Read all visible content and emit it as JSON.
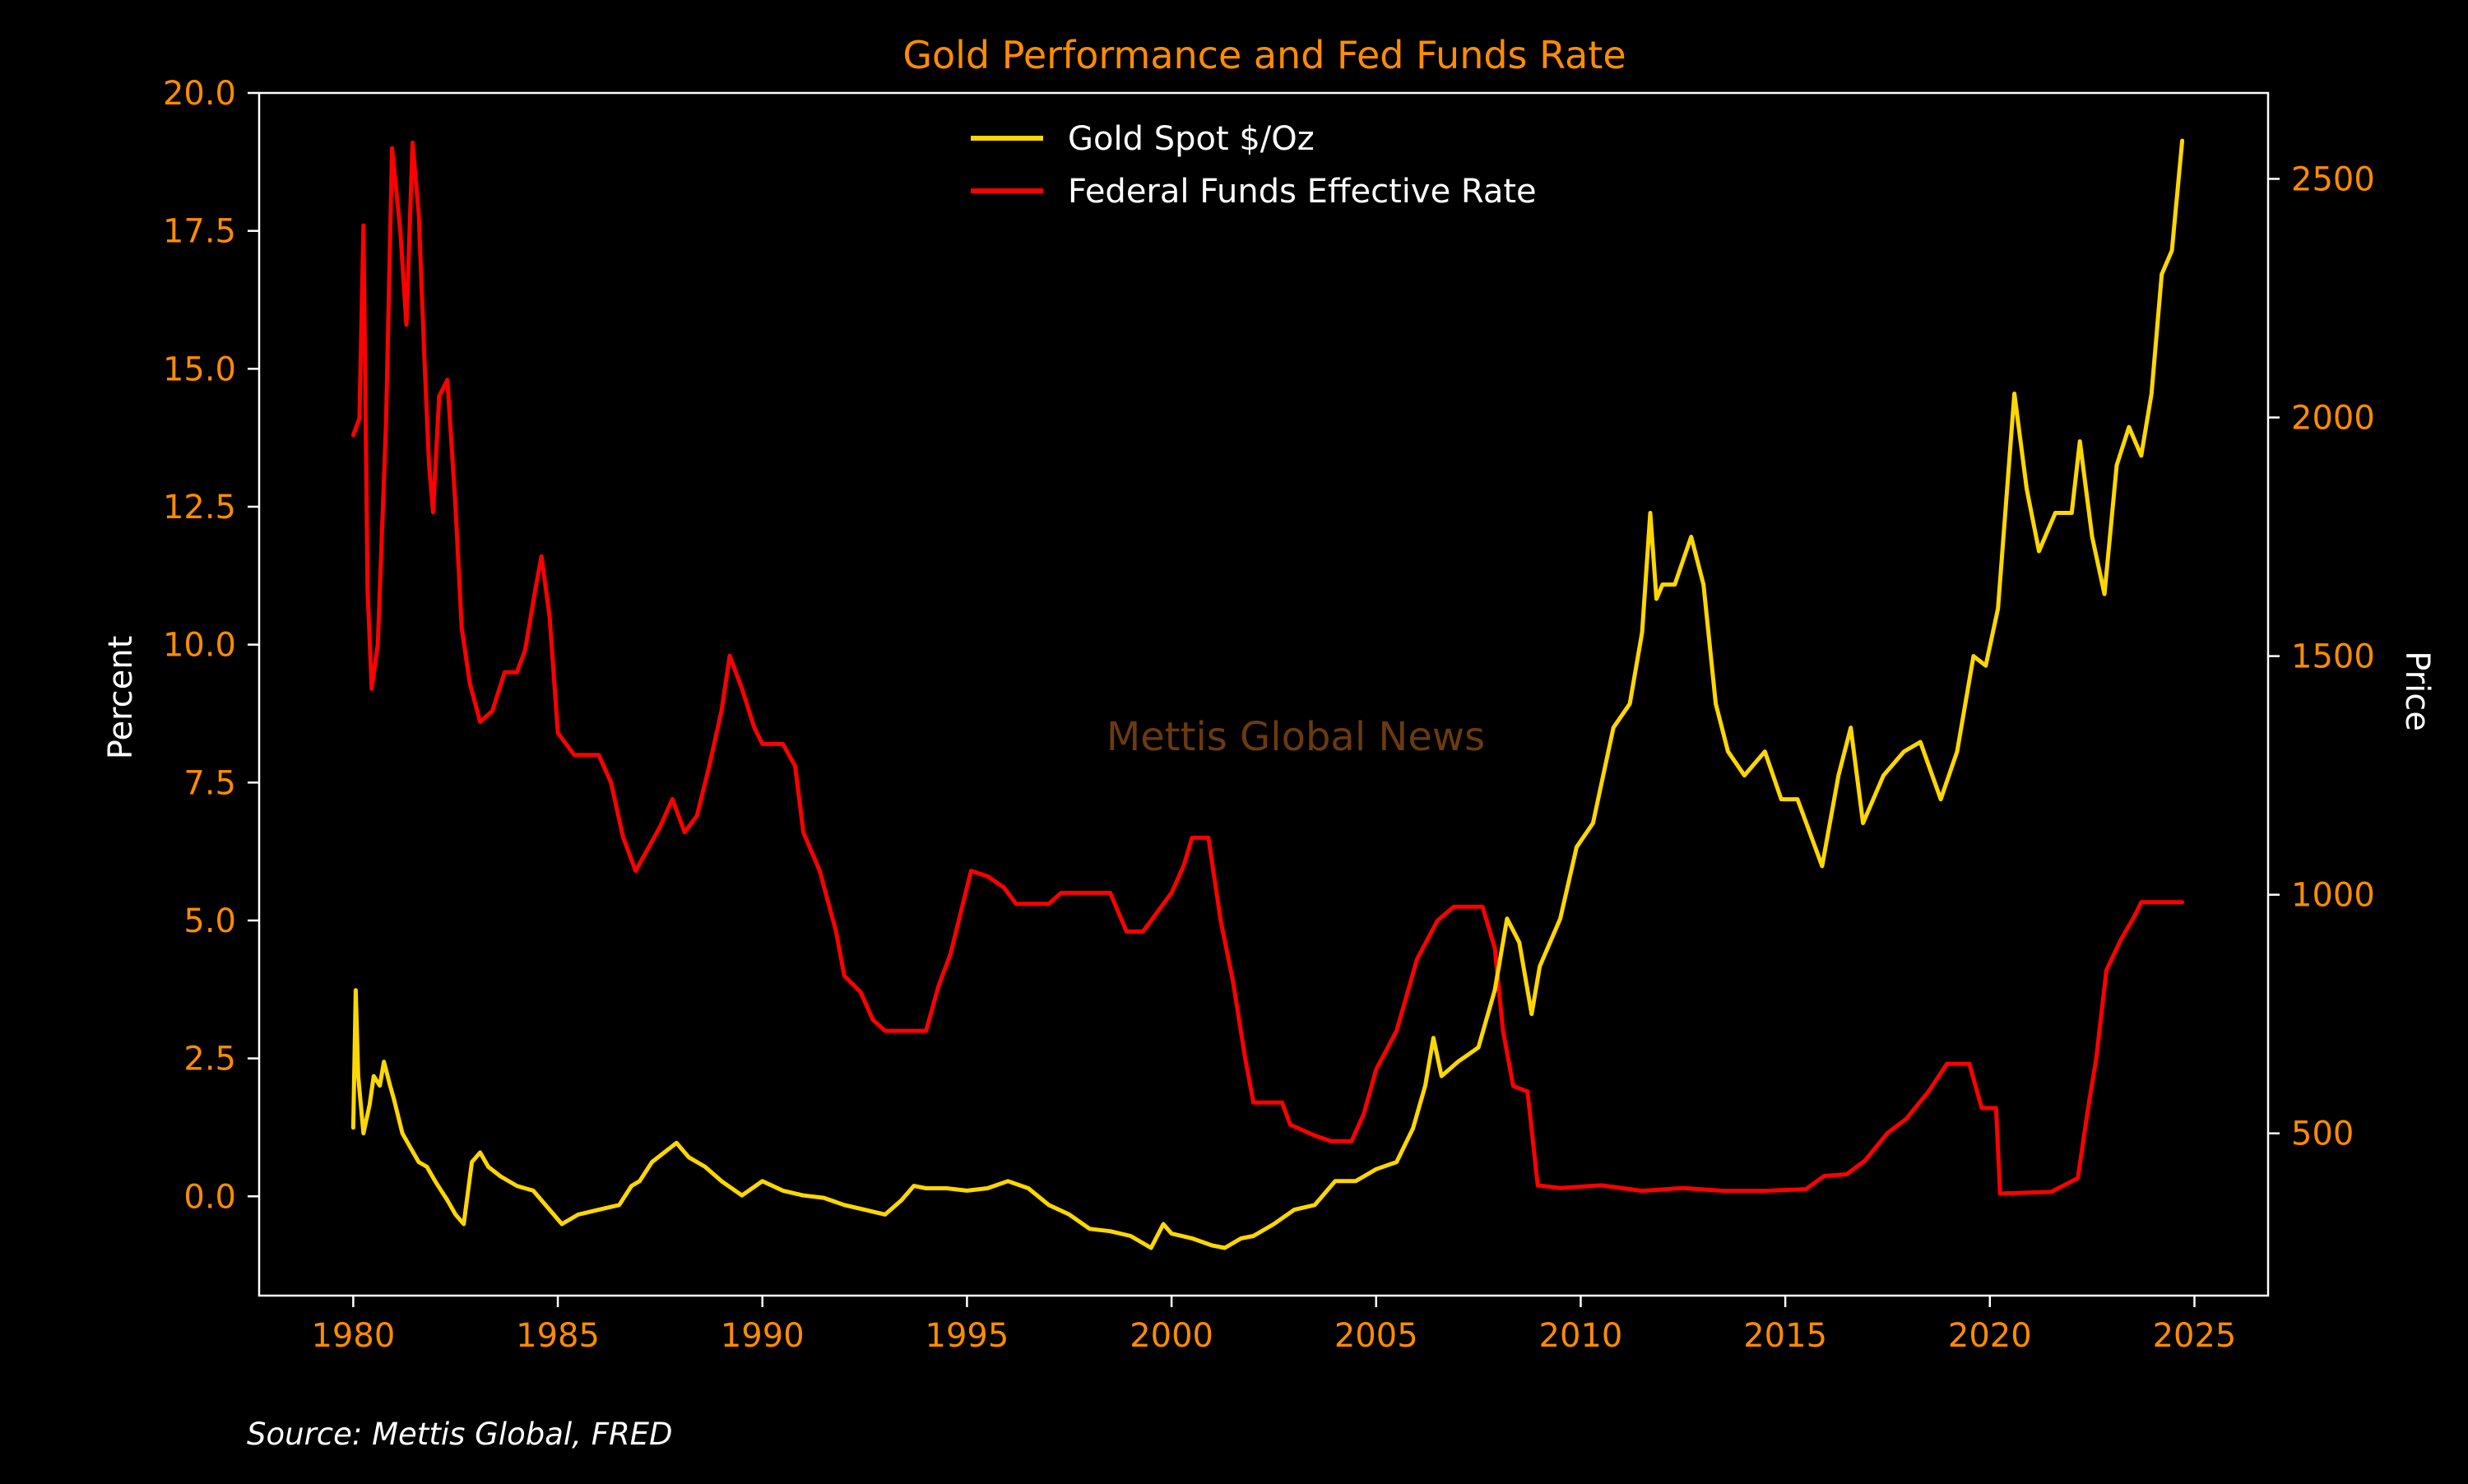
{
  "chart_data": {
    "type": "line",
    "title": "Gold Performance and Fed Funds Rate",
    "watermark": "Mettis Global News",
    "source_note": "Source: Mettis Global, FRED",
    "colors": {
      "background": "#000000",
      "axes": "#ffffff",
      "title": "#ff8c00",
      "tick_labels": "#ff8c00",
      "axis_labels": "#ffffff",
      "watermark": "#6b3a10",
      "gold": "#ffd700",
      "fed_funds": "#ff0000"
    },
    "legend": {
      "placement": "top-center",
      "entries": [
        "Gold Spot $/Oz",
        "Federal Funds Effective Rate"
      ]
    },
    "x_axis": {
      "range": [
        1977.7,
        2026.8
      ],
      "ticks": [
        1980,
        1985,
        1990,
        1995,
        2000,
        2005,
        2010,
        2015,
        2020,
        2025
      ],
      "tick_labels": [
        "1980",
        "1985",
        "1990",
        "1995",
        "2000",
        "2005",
        "2010",
        "2015",
        "2020",
        "2025"
      ]
    },
    "y_left": {
      "label": "Percent",
      "range": [
        -1.8,
        20.0
      ],
      "ticks": [
        0,
        2.5,
        5,
        7.5,
        10,
        12.5,
        15,
        17.5,
        20
      ],
      "tick_labels": [
        "0.0",
        "2.5",
        "5.0",
        "7.5",
        "10.0",
        "12.5",
        "15.0",
        "17.5",
        "20.0"
      ]
    },
    "y_right": {
      "label": "Price",
      "range": [
        160,
        2680
      ],
      "ticks": [
        500,
        1000,
        1500,
        2000,
        2500
      ],
      "tick_labels": [
        "500",
        "1000",
        "1500",
        "2000",
        "2500"
      ]
    },
    "series": [
      {
        "name": "Gold Spot $/Oz",
        "axis": "right",
        "points": [
          [
            1980.0,
            512
          ],
          [
            1980.06,
            800
          ],
          [
            1980.12,
            620
          ],
          [
            1980.25,
            500
          ],
          [
            1980.4,
            560
          ],
          [
            1980.5,
            620
          ],
          [
            1980.65,
            600
          ],
          [
            1980.75,
            650
          ],
          [
            1980.9,
            600
          ],
          [
            1981.0,
            570
          ],
          [
            1981.2,
            500
          ],
          [
            1981.4,
            470
          ],
          [
            1981.6,
            440
          ],
          [
            1981.8,
            430
          ],
          [
            1982.0,
            400
          ],
          [
            1982.3,
            360
          ],
          [
            1982.5,
            330
          ],
          [
            1982.7,
            310
          ],
          [
            1982.9,
            440
          ],
          [
            1983.1,
            460
          ],
          [
            1983.3,
            430
          ],
          [
            1983.6,
            410
          ],
          [
            1984.0,
            390
          ],
          [
            1984.4,
            380
          ],
          [
            1984.8,
            340
          ],
          [
            1985.1,
            310
          ],
          [
            1985.5,
            330
          ],
          [
            1986.0,
            340
          ],
          [
            1986.5,
            350
          ],
          [
            1986.8,
            390
          ],
          [
            1987.0,
            400
          ],
          [
            1987.3,
            440
          ],
          [
            1987.6,
            460
          ],
          [
            1987.9,
            480
          ],
          [
            1988.2,
            450
          ],
          [
            1988.6,
            430
          ],
          [
            1989.0,
            400
          ],
          [
            1989.5,
            370
          ],
          [
            1990.0,
            400
          ],
          [
            1990.5,
            380
          ],
          [
            1991.0,
            370
          ],
          [
            1991.5,
            365
          ],
          [
            1992.0,
            350
          ],
          [
            1992.5,
            340
          ],
          [
            1993.0,
            330
          ],
          [
            1993.4,
            360
          ],
          [
            1993.7,
            390
          ],
          [
            1994.0,
            385
          ],
          [
            1994.5,
            385
          ],
          [
            1995.0,
            380
          ],
          [
            1995.5,
            385
          ],
          [
            1996.0,
            400
          ],
          [
            1996.5,
            385
          ],
          [
            1997.0,
            350
          ],
          [
            1997.5,
            330
          ],
          [
            1998.0,
            300
          ],
          [
            1998.5,
            295
          ],
          [
            1999.0,
            285
          ],
          [
            1999.5,
            260
          ],
          [
            1999.8,
            310
          ],
          [
            2000.0,
            290
          ],
          [
            2000.5,
            280
          ],
          [
            2001.0,
            265
          ],
          [
            2001.3,
            260
          ],
          [
            2001.7,
            280
          ],
          [
            2002.0,
            285
          ],
          [
            2002.5,
            310
          ],
          [
            2003.0,
            340
          ],
          [
            2003.5,
            350
          ],
          [
            2004.0,
            400
          ],
          [
            2004.5,
            400
          ],
          [
            2005.0,
            425
          ],
          [
            2005.5,
            440
          ],
          [
            2005.9,
            510
          ],
          [
            2006.2,
            600
          ],
          [
            2006.4,
            700
          ],
          [
            2006.6,
            620
          ],
          [
            2007.0,
            650
          ],
          [
            2007.5,
            680
          ],
          [
            2007.9,
            800
          ],
          [
            2008.2,
            950
          ],
          [
            2008.5,
            900
          ],
          [
            2008.8,
            750
          ],
          [
            2009.0,
            850
          ],
          [
            2009.5,
            950
          ],
          [
            2009.9,
            1100
          ],
          [
            2010.3,
            1150
          ],
          [
            2010.8,
            1350
          ],
          [
            2011.2,
            1400
          ],
          [
            2011.5,
            1550
          ],
          [
            2011.7,
            1800
          ],
          [
            2011.85,
            1620
          ],
          [
            2012.0,
            1650
          ],
          [
            2012.3,
            1650
          ],
          [
            2012.7,
            1750
          ],
          [
            2013.0,
            1650
          ],
          [
            2013.3,
            1400
          ],
          [
            2013.6,
            1300
          ],
          [
            2014.0,
            1250
          ],
          [
            2014.5,
            1300
          ],
          [
            2014.9,
            1200
          ],
          [
            2015.3,
            1200
          ],
          [
            2015.9,
            1060
          ],
          [
            2016.3,
            1250
          ],
          [
            2016.6,
            1350
          ],
          [
            2016.9,
            1150
          ],
          [
            2017.4,
            1250
          ],
          [
            2017.9,
            1300
          ],
          [
            2018.3,
            1320
          ],
          [
            2018.8,
            1200
          ],
          [
            2019.2,
            1300
          ],
          [
            2019.6,
            1500
          ],
          [
            2019.9,
            1480
          ],
          [
            2020.2,
            1600
          ],
          [
            2020.6,
            2050
          ],
          [
            2020.9,
            1850
          ],
          [
            2021.2,
            1720
          ],
          [
            2021.6,
            1800
          ],
          [
            2022.0,
            1800
          ],
          [
            2022.2,
            1950
          ],
          [
            2022.5,
            1750
          ],
          [
            2022.8,
            1630
          ],
          [
            2023.1,
            1900
          ],
          [
            2023.4,
            1980
          ],
          [
            2023.7,
            1920
          ],
          [
            2023.95,
            2050
          ],
          [
            2024.2,
            2300
          ],
          [
            2024.45,
            2350
          ],
          [
            2024.7,
            2580
          ]
        ]
      },
      {
        "name": "Federal Funds Effective Rate",
        "axis": "left",
        "points": [
          [
            1980.0,
            13.8
          ],
          [
            1980.15,
            14.1
          ],
          [
            1980.25,
            17.6
          ],
          [
            1980.35,
            11.0
          ],
          [
            1980.45,
            9.2
          ],
          [
            1980.6,
            10.0
          ],
          [
            1980.8,
            14.0
          ],
          [
            1980.95,
            19.0
          ],
          [
            1981.15,
            17.5
          ],
          [
            1981.3,
            15.8
          ],
          [
            1981.45,
            19.1
          ],
          [
            1981.6,
            17.8
          ],
          [
            1981.75,
            15.0
          ],
          [
            1981.85,
            13.3
          ],
          [
            1981.95,
            12.4
          ],
          [
            1982.1,
            14.5
          ],
          [
            1982.3,
            14.8
          ],
          [
            1982.5,
            12.5
          ],
          [
            1982.65,
            10.3
          ],
          [
            1982.85,
            9.3
          ],
          [
            1983.1,
            8.6
          ],
          [
            1983.4,
            8.8
          ],
          [
            1983.7,
            9.5
          ],
          [
            1984.0,
            9.5
          ],
          [
            1984.2,
            9.9
          ],
          [
            1984.45,
            11.0
          ],
          [
            1984.6,
            11.6
          ],
          [
            1984.8,
            10.5
          ],
          [
            1985.0,
            8.4
          ],
          [
            1985.4,
            8.0
          ],
          [
            1985.8,
            8.0
          ],
          [
            1986.0,
            8.0
          ],
          [
            1986.3,
            7.5
          ],
          [
            1986.6,
            6.5
          ],
          [
            1986.9,
            5.9
          ],
          [
            1987.2,
            6.3
          ],
          [
            1987.5,
            6.7
          ],
          [
            1987.8,
            7.2
          ],
          [
            1988.1,
            6.6
          ],
          [
            1988.4,
            6.9
          ],
          [
            1988.7,
            7.8
          ],
          [
            1989.0,
            8.8
          ],
          [
            1989.2,
            9.8
          ],
          [
            1989.5,
            9.2
          ],
          [
            1989.8,
            8.5
          ],
          [
            1990.0,
            8.2
          ],
          [
            1990.5,
            8.2
          ],
          [
            1990.8,
            7.8
          ],
          [
            1991.0,
            6.6
          ],
          [
            1991.4,
            5.9
          ],
          [
            1991.8,
            4.8
          ],
          [
            1992.0,
            4.0
          ],
          [
            1992.4,
            3.7
          ],
          [
            1992.7,
            3.2
          ],
          [
            1993.0,
            3.0
          ],
          [
            1993.5,
            3.0
          ],
          [
            1994.0,
            3.0
          ],
          [
            1994.3,
            3.8
          ],
          [
            1994.6,
            4.4
          ],
          [
            1994.9,
            5.3
          ],
          [
            1995.1,
            5.9
          ],
          [
            1995.5,
            5.8
          ],
          [
            1995.9,
            5.6
          ],
          [
            1996.2,
            5.3
          ],
          [
            1996.7,
            5.3
          ],
          [
            1997.0,
            5.3
          ],
          [
            1997.3,
            5.5
          ],
          [
            1997.9,
            5.5
          ],
          [
            1998.5,
            5.5
          ],
          [
            1998.9,
            4.8
          ],
          [
            1999.3,
            4.8
          ],
          [
            1999.6,
            5.1
          ],
          [
            2000.0,
            5.5
          ],
          [
            2000.3,
            6.0
          ],
          [
            2000.5,
            6.5
          ],
          [
            2000.9,
            6.5
          ],
          [
            2001.2,
            5.0
          ],
          [
            2001.5,
            3.9
          ],
          [
            2001.8,
            2.5
          ],
          [
            2002.0,
            1.7
          ],
          [
            2002.7,
            1.7
          ],
          [
            2002.9,
            1.3
          ],
          [
            2003.5,
            1.1
          ],
          [
            2003.9,
            1.0
          ],
          [
            2004.4,
            1.0
          ],
          [
            2004.7,
            1.5
          ],
          [
            2005.0,
            2.3
          ],
          [
            2005.5,
            3.0
          ],
          [
            2006.0,
            4.3
          ],
          [
            2006.5,
            5.0
          ],
          [
            2006.9,
            5.25
          ],
          [
            2007.6,
            5.25
          ],
          [
            2007.9,
            4.5
          ],
          [
            2008.1,
            3.0
          ],
          [
            2008.35,
            2.0
          ],
          [
            2008.7,
            1.9
          ],
          [
            2008.95,
            0.2
          ],
          [
            2009.5,
            0.15
          ],
          [
            2010.5,
            0.2
          ],
          [
            2011.5,
            0.1
          ],
          [
            2012.5,
            0.15
          ],
          [
            2013.5,
            0.1
          ],
          [
            2014.5,
            0.1
          ],
          [
            2015.5,
            0.13
          ],
          [
            2015.95,
            0.37
          ],
          [
            2016.5,
            0.4
          ],
          [
            2016.95,
            0.65
          ],
          [
            2017.5,
            1.15
          ],
          [
            2017.95,
            1.4
          ],
          [
            2018.5,
            1.9
          ],
          [
            2018.95,
            2.4
          ],
          [
            2019.5,
            2.4
          ],
          [
            2019.8,
            1.6
          ],
          [
            2020.15,
            1.6
          ],
          [
            2020.25,
            0.05
          ],
          [
            2021.5,
            0.08
          ],
          [
            2022.15,
            0.33
          ],
          [
            2022.4,
            1.6
          ],
          [
            2022.6,
            2.5
          ],
          [
            2022.85,
            4.1
          ],
          [
            2023.2,
            4.65
          ],
          [
            2023.55,
            5.1
          ],
          [
            2023.7,
            5.33
          ],
          [
            2024.7,
            5.33
          ]
        ]
      }
    ]
  }
}
